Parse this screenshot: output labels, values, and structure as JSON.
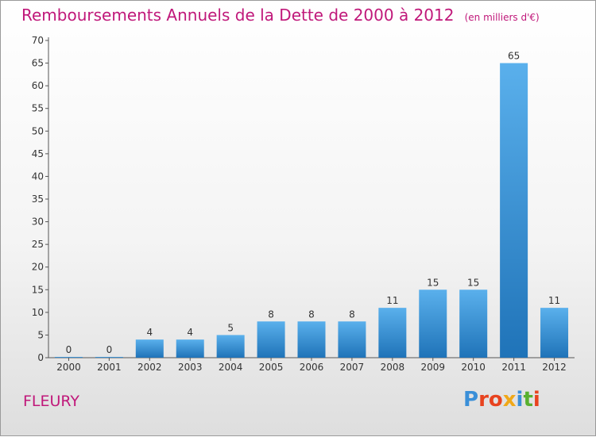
{
  "header": {
    "title": "Remboursements Annuels de la Dette de 2000 à 2012",
    "unit": "(en milliers d'€)"
  },
  "footer": {
    "commune": "FLEURY",
    "brand_letters": [
      "P",
      "r",
      "o",
      "x",
      "i",
      "t",
      "i"
    ]
  },
  "colors": {
    "title": "#c0187a",
    "bar_top": "#5ab0ec",
    "bar_bottom": "#1f73b8",
    "brand": [
      "#3a8fd8",
      "#e8431f",
      "#e8431f",
      "#f0a818",
      "#3a8fd8",
      "#58b030",
      "#e8431f"
    ]
  },
  "chart_data": {
    "type": "bar",
    "title": "Remboursements Annuels de la Dette de 2000 à 2012",
    "subtitle": "(en milliers d'€)",
    "categories": [
      "2000",
      "2001",
      "2002",
      "2003",
      "2004",
      "2005",
      "2006",
      "2007",
      "2008",
      "2009",
      "2010",
      "2011",
      "2012"
    ],
    "values": [
      0,
      0,
      4,
      4,
      5,
      8,
      8,
      8,
      11,
      15,
      15,
      65,
      11
    ],
    "data_labels": [
      "0",
      "0",
      "4",
      "4",
      "5",
      "8",
      "8",
      "8",
      "11",
      "15",
      "15",
      "65",
      "11"
    ],
    "ylim": [
      0,
      70
    ],
    "yticks": [
      0,
      5,
      10,
      15,
      20,
      25,
      30,
      35,
      40,
      45,
      50,
      55,
      60,
      65,
      70
    ],
    "grid": false,
    "legend": "none"
  }
}
